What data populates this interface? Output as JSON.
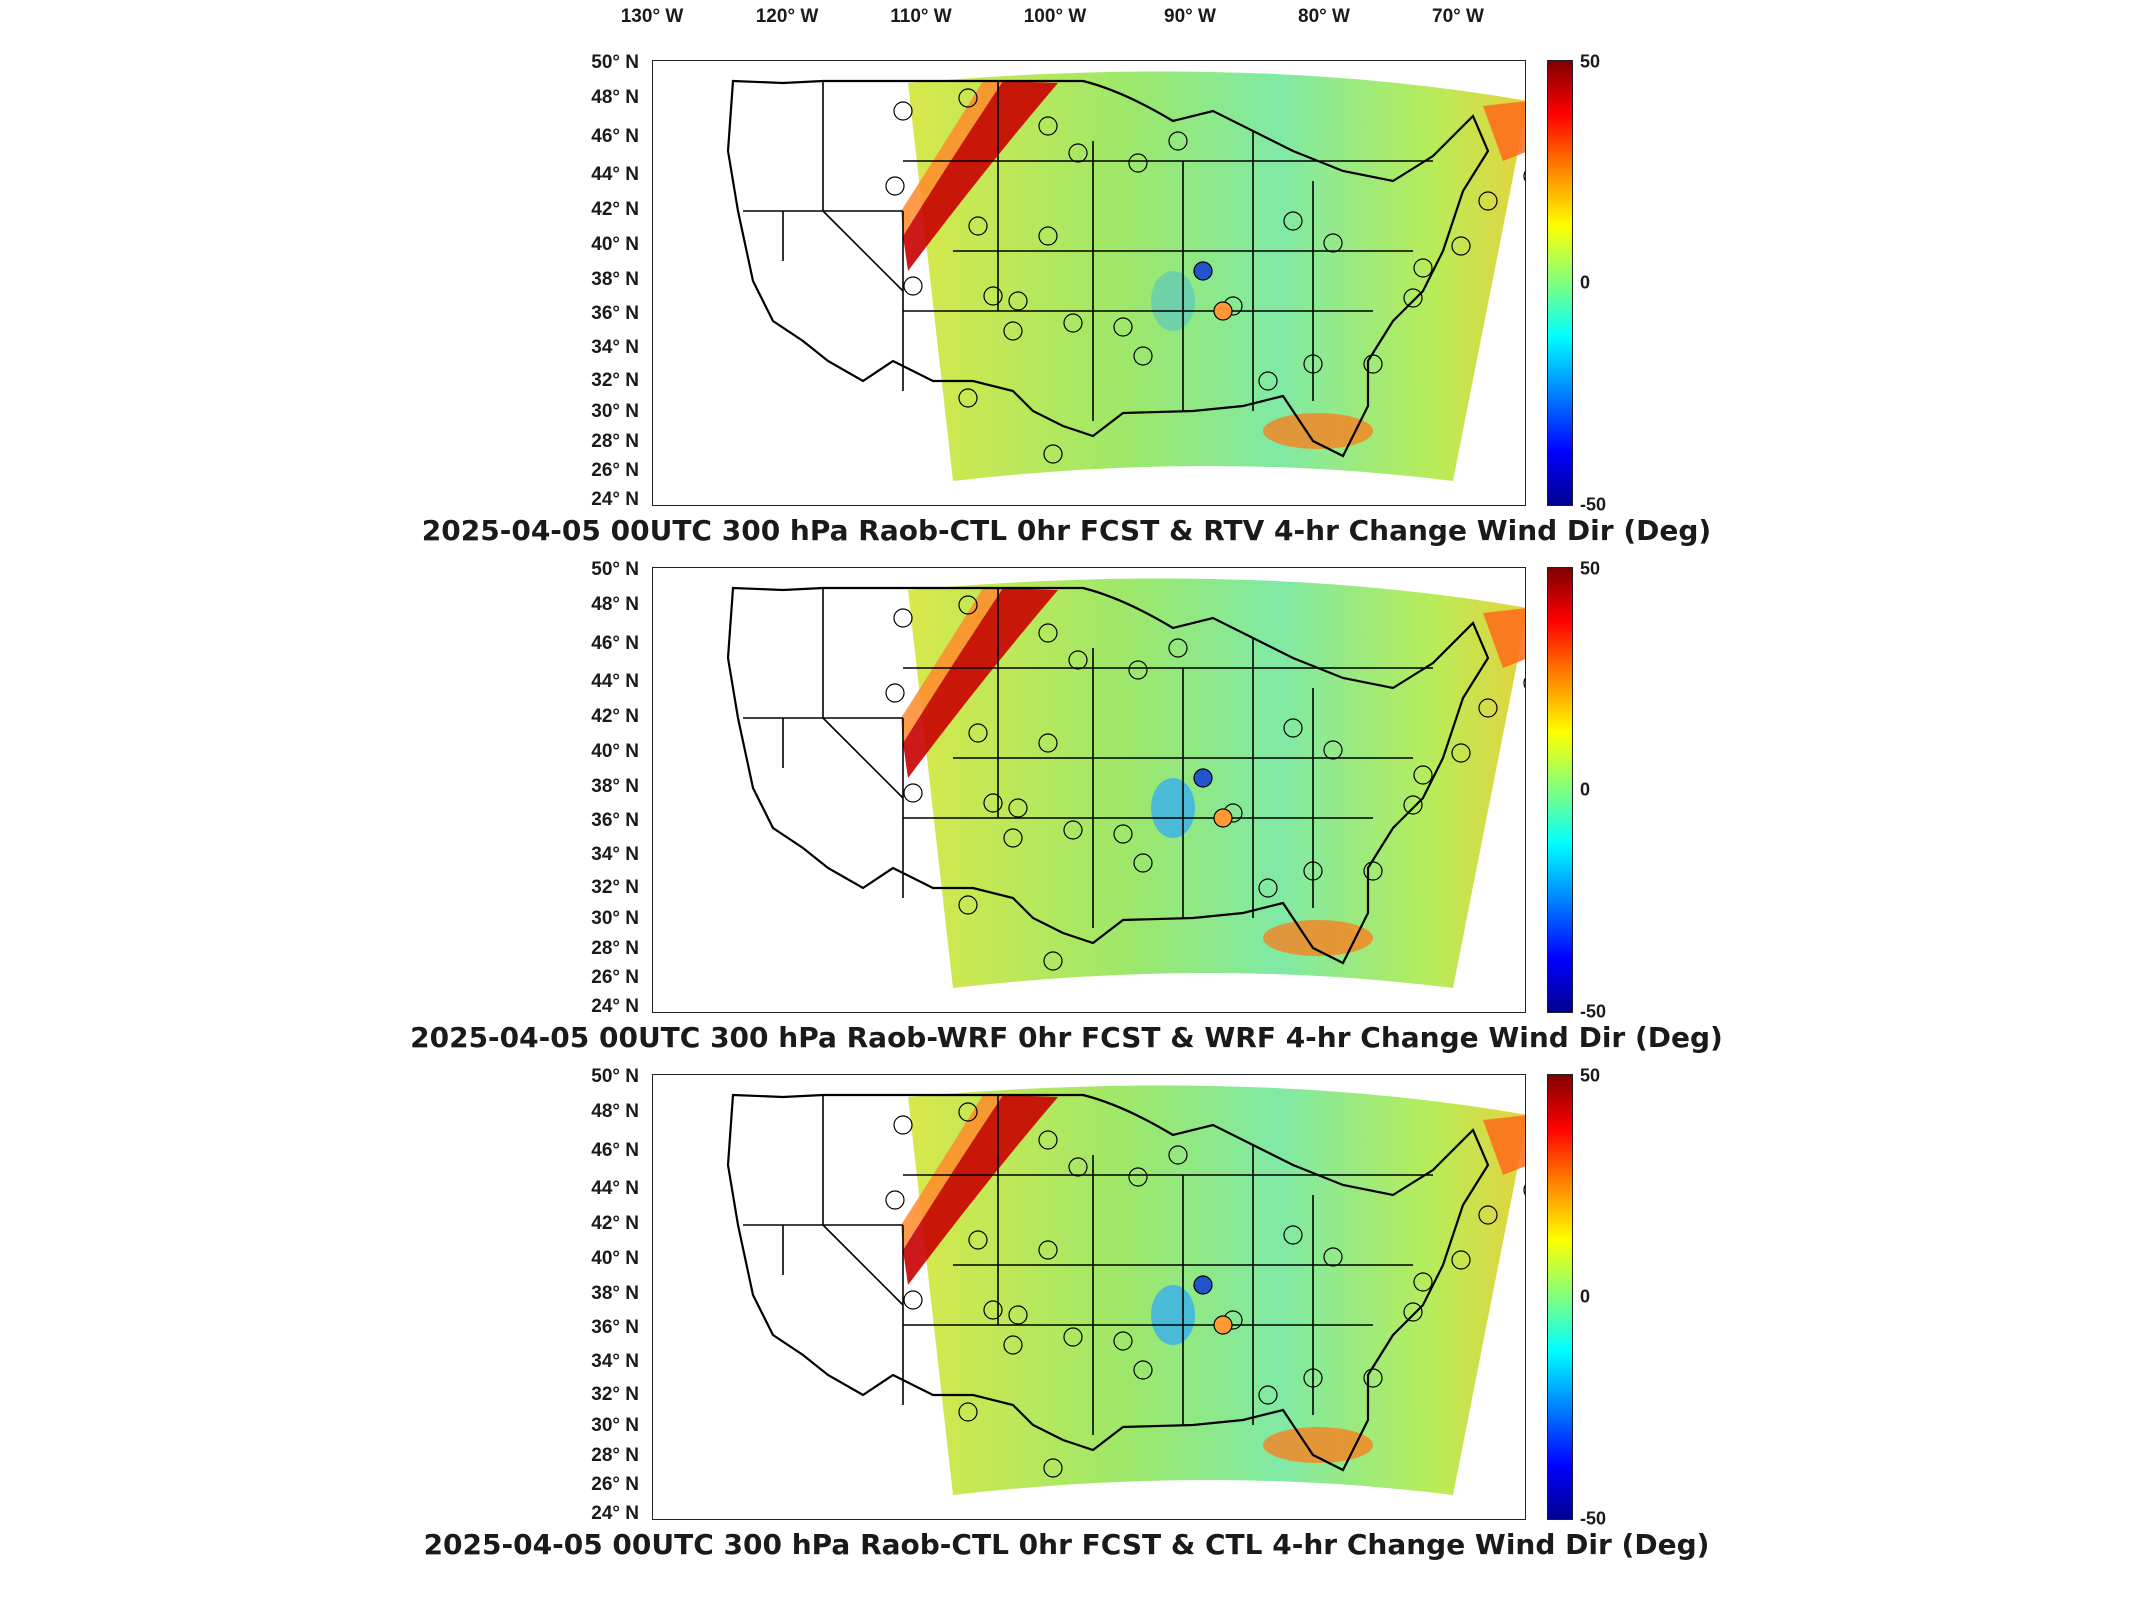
{
  "longitude_labels": [
    "130° W",
    "120° W",
    "110° W",
    "100° W",
    "90° W",
    "80° W",
    "70° W"
  ],
  "latitude_labels": [
    "50° N",
    "48° N",
    "46° N",
    "44° N",
    "42° N",
    "40° N",
    "38° N",
    "36° N",
    "34° N",
    "32° N",
    "30° N",
    "28° N",
    "26° N",
    "24° N"
  ],
  "colorbar": {
    "max": "50",
    "mid": "0",
    "min": "-50"
  },
  "panels": [
    {
      "title": "2025-04-05 00UTC 300 hPa Raob-CTL 0hr FCST & RTV 4-hr Change Wind Dir (Deg)"
    },
    {
      "title": "2025-04-05 00UTC 300 hPa Raob-WRF 0hr FCST & WRF 4-hr Change Wind Dir (Deg)"
    },
    {
      "title": "2025-04-05 00UTC 300 hPa Raob-CTL 0hr FCST & CTL 4-hr Change Wind Dir (Deg)"
    }
  ],
  "colors": {
    "background_field": "#7fe9a5",
    "positive_band": "#c80000",
    "station_blue": "#2255cc",
    "station_orange": "#ff9933"
  }
}
